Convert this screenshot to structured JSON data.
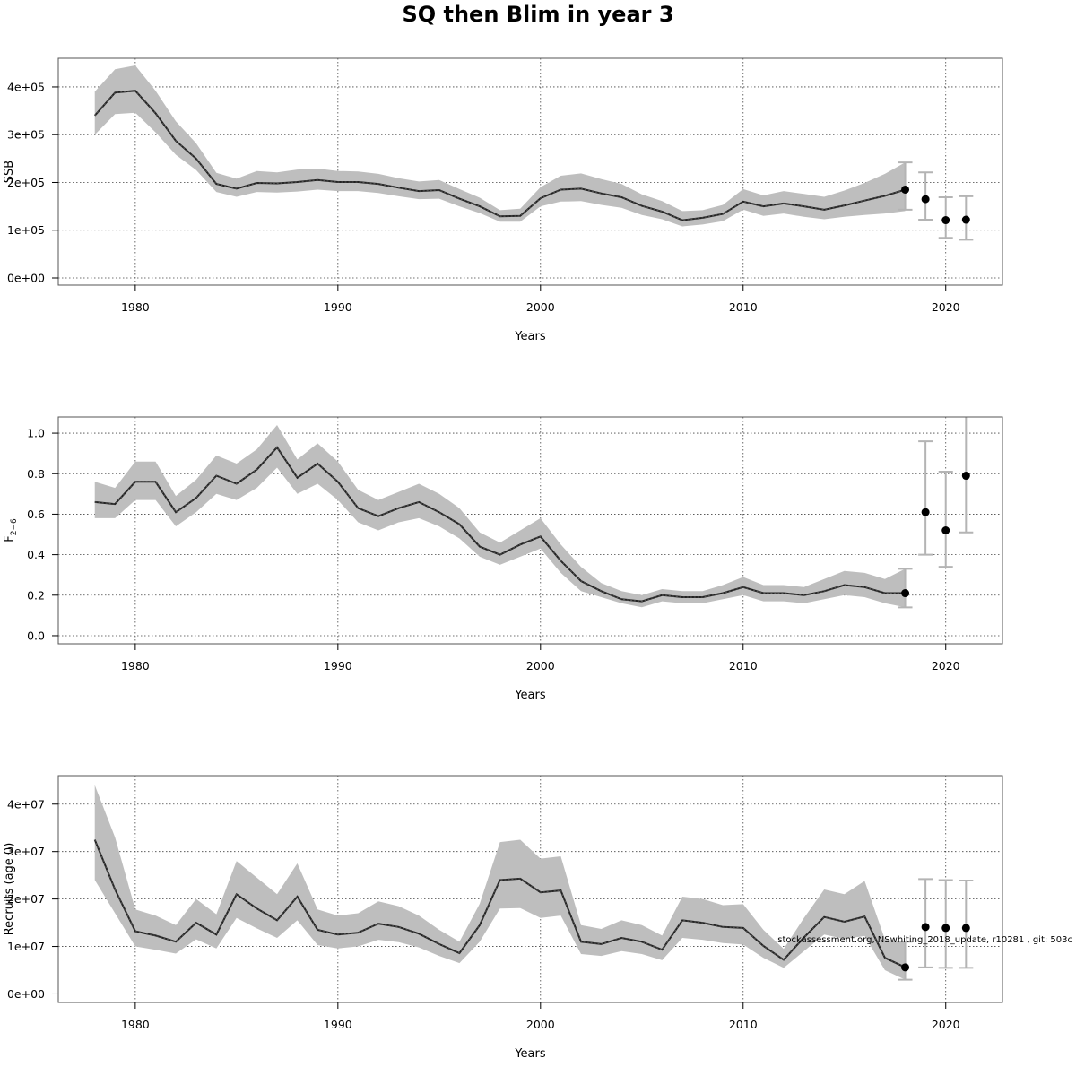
{
  "title": "SQ then Blim in year 3",
  "footnote": "stockassessment.org, NSwhiting_2018_update, r10281 , git: 503c",
  "chart_data": [
    {
      "type": "line",
      "ylabel": "SSB",
      "xlabel": "Years",
      "xlim": [
        1976.2,
        2022.8
      ],
      "ylim": [
        -15000,
        460000
      ],
      "x_ticks": [
        1980,
        1990,
        2000,
        2010,
        2020
      ],
      "y_ticks": [
        0,
        100000,
        200000,
        300000,
        400000
      ],
      "y_tick_labels": [
        "0e+00",
        "1e+05",
        "2e+05",
        "3e+05",
        "4e+05"
      ],
      "grid": true,
      "series": [
        {
          "x": [
            1978,
            1979,
            1980,
            1981,
            1982,
            1983,
            1984,
            1985,
            1986,
            1987,
            1988,
            1989,
            1990,
            1991,
            1992,
            1993,
            1994,
            1995,
            1996,
            1997,
            1998,
            1999,
            2000,
            2001,
            2002,
            2003,
            2004,
            2005,
            2006,
            2007,
            2008,
            2009,
            2010,
            2011,
            2012,
            2013,
            2014,
            2015,
            2016,
            2017,
            2018
          ],
          "estimate": [
            340000,
            388000,
            392000,
            345000,
            287000,
            250000,
            197000,
            187000,
            199000,
            198000,
            201000,
            205000,
            201000,
            201000,
            197000,
            189000,
            182000,
            184000,
            166000,
            150000,
            129000,
            130000,
            167000,
            185000,
            187000,
            177000,
            169000,
            151000,
            139000,
            121000,
            126000,
            134000,
            160000,
            150000,
            156000,
            150000,
            143000,
            152000,
            162000,
            172000,
            185000
          ],
          "lower": [
            300000,
            343000,
            346000,
            305000,
            258000,
            226000,
            180000,
            170000,
            180000,
            179000,
            181000,
            185000,
            182000,
            182000,
            178000,
            171000,
            165000,
            166000,
            150000,
            136000,
            118000,
            118000,
            150000,
            160000,
            161000,
            153000,
            147000,
            132000,
            123000,
            108000,
            112000,
            119000,
            143000,
            130000,
            135000,
            128000,
            123000,
            128000,
            132000,
            135000,
            140000
          ],
          "upper": [
            390000,
            437000,
            445000,
            392000,
            328000,
            282000,
            220000,
            208000,
            224000,
            221000,
            227000,
            229000,
            224000,
            223000,
            218000,
            209000,
            202000,
            205000,
            186000,
            168000,
            142000,
            145000,
            190000,
            214000,
            219000,
            207000,
            197000,
            175000,
            161000,
            140000,
            142000,
            153000,
            186000,
            173000,
            182000,
            176000,
            170000,
            183000,
            199000,
            218000,
            242000
          ]
        }
      ],
      "forecast": {
        "x": [
          2018,
          2019,
          2020,
          2021
        ],
        "median": [
          185000,
          165000,
          121000,
          122000
        ],
        "lower": [
          143000,
          122000,
          84000,
          80000
        ],
        "upper": [
          242000,
          221000,
          169000,
          171000
        ]
      }
    },
    {
      "type": "line",
      "ylabel": "F",
      "ylabel_subscript": "2−6",
      "xlabel": "Years",
      "xlim": [
        1976.2,
        2022.8
      ],
      "ylim": [
        -0.04,
        1.08
      ],
      "x_ticks": [
        1980,
        1990,
        2000,
        2010,
        2020
      ],
      "y_ticks": [
        0.0,
        0.2,
        0.4,
        0.6,
        0.8,
        1.0
      ],
      "y_tick_labels": [
        "0.0",
        "0.2",
        "0.4",
        "0.6",
        "0.8",
        "1.0"
      ],
      "grid": true,
      "series": [
        {
          "x": [
            1978,
            1979,
            1980,
            1981,
            1982,
            1983,
            1984,
            1985,
            1986,
            1987,
            1988,
            1989,
            1990,
            1991,
            1992,
            1993,
            1994,
            1995,
            1996,
            1997,
            1998,
            1999,
            2000,
            2001,
            2002,
            2003,
            2004,
            2005,
            2006,
            2007,
            2008,
            2009,
            2010,
            2011,
            2012,
            2013,
            2014,
            2015,
            2016,
            2017,
            2018
          ],
          "estimate": [
            0.66,
            0.65,
            0.76,
            0.76,
            0.61,
            0.68,
            0.79,
            0.75,
            0.82,
            0.93,
            0.78,
            0.85,
            0.76,
            0.63,
            0.59,
            0.63,
            0.66,
            0.61,
            0.55,
            0.44,
            0.4,
            0.45,
            0.49,
            0.37,
            0.27,
            0.22,
            0.18,
            0.17,
            0.2,
            0.19,
            0.19,
            0.21,
            0.24,
            0.21,
            0.21,
            0.2,
            0.22,
            0.25,
            0.24,
            0.21,
            0.21
          ],
          "lower": [
            0.58,
            0.58,
            0.67,
            0.67,
            0.54,
            0.61,
            0.7,
            0.67,
            0.73,
            0.83,
            0.7,
            0.75,
            0.67,
            0.56,
            0.52,
            0.56,
            0.58,
            0.54,
            0.48,
            0.39,
            0.35,
            0.39,
            0.43,
            0.31,
            0.22,
            0.19,
            0.16,
            0.14,
            0.17,
            0.16,
            0.16,
            0.18,
            0.2,
            0.17,
            0.17,
            0.16,
            0.18,
            0.2,
            0.19,
            0.16,
            0.14
          ],
          "upper": [
            0.76,
            0.73,
            0.86,
            0.86,
            0.69,
            0.77,
            0.89,
            0.85,
            0.92,
            1.04,
            0.87,
            0.95,
            0.86,
            0.72,
            0.67,
            0.71,
            0.75,
            0.7,
            0.63,
            0.51,
            0.46,
            0.52,
            0.58,
            0.45,
            0.34,
            0.26,
            0.22,
            0.2,
            0.23,
            0.22,
            0.22,
            0.25,
            0.29,
            0.25,
            0.25,
            0.24,
            0.28,
            0.32,
            0.31,
            0.28,
            0.33
          ]
        }
      ],
      "forecast": {
        "x": [
          2018,
          2019,
          2020,
          2021
        ],
        "median": [
          0.21,
          0.61,
          0.52,
          0.79
        ],
        "lower": [
          0.14,
          0.4,
          0.34,
          0.51
        ],
        "upper": [
          0.33,
          0.96,
          0.81,
          1.1
        ]
      }
    },
    {
      "type": "line",
      "ylabel": "Recruits (age 0)",
      "xlabel": "Years",
      "xlim": [
        1976.2,
        2022.8
      ],
      "ylim": [
        -1800000,
        46000000
      ],
      "x_ticks": [
        1980,
        1990,
        2000,
        2010,
        2020
      ],
      "y_ticks": [
        0,
        10000000,
        20000000,
        30000000,
        40000000
      ],
      "y_tick_labels": [
        "0e+00",
        "1e+07",
        "2e+07",
        "3e+07",
        "4e+07"
      ],
      "grid": true,
      "series": [
        {
          "x": [
            1978,
            1979,
            1980,
            1981,
            1982,
            1983,
            1984,
            1985,
            1986,
            1987,
            1988,
            1989,
            1990,
            1991,
            1992,
            1993,
            1994,
            1995,
            1996,
            1997,
            1998,
            1999,
            2000,
            2001,
            2002,
            2003,
            2004,
            2005,
            2006,
            2007,
            2008,
            2009,
            2010,
            2011,
            2012,
            2013,
            2014,
            2015,
            2016,
            2017,
            2018
          ],
          "estimate": [
            32500000,
            22000000,
            13200000,
            12300000,
            11000000,
            15000000,
            12500000,
            21000000,
            18000000,
            15500000,
            20500000,
            13500000,
            12500000,
            12900000,
            14800000,
            14100000,
            12700000,
            10500000,
            8600000,
            14500000,
            24000000,
            24300000,
            21400000,
            21800000,
            11000000,
            10500000,
            11800000,
            11000000,
            9300000,
            15500000,
            15000000,
            14100000,
            13900000,
            10100000,
            7200000,
            11900000,
            16200000,
            15200000,
            16300000,
            7600000,
            5600000
          ],
          "lower": [
            24000000,
            17000000,
            10000000,
            9300000,
            8500000,
            11500000,
            9600000,
            16000000,
            13800000,
            11800000,
            15500000,
            10300000,
            9600000,
            10000000,
            11400000,
            10900000,
            9800000,
            8000000,
            6500000,
            11000000,
            18000000,
            18100000,
            16000000,
            16500000,
            8400000,
            8000000,
            9000000,
            8400000,
            7100000,
            11800000,
            11400000,
            10700000,
            10400000,
            7600000,
            5500000,
            9000000,
            12500000,
            11600000,
            12200000,
            5000000,
            3000000
          ],
          "upper": [
            44000000,
            33000000,
            17800000,
            16500000,
            14500000,
            20000000,
            16800000,
            28000000,
            24500000,
            21000000,
            27500000,
            17800000,
            16500000,
            17000000,
            19500000,
            18500000,
            16500000,
            13500000,
            11000000,
            19000000,
            32000000,
            32500000,
            28500000,
            29000000,
            14500000,
            13700000,
            15500000,
            14500000,
            12300000,
            20500000,
            20000000,
            18700000,
            18900000,
            13500000,
            9500000,
            16000000,
            22000000,
            21000000,
            23800000,
            11500000,
            11000000
          ]
        }
      ],
      "forecast": {
        "x": [
          2018,
          2019,
          2020,
          2021
        ],
        "median": [
          5600000,
          14100000,
          13900000,
          13900000
        ],
        "lower": [
          3000000,
          5600000,
          5500000,
          5500000
        ],
        "upper": [
          11000000,
          24200000,
          24000000,
          23900000
        ]
      }
    }
  ],
  "colors": {
    "band": "#bebebe",
    "line": "#222222",
    "point": "#000000",
    "errorbar": "#b4b4b4",
    "grid": "#444444",
    "frame": "#555555"
  }
}
